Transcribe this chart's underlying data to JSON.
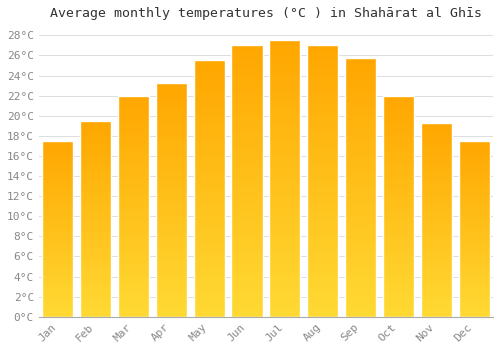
{
  "title": "Average monthly temperatures (°C ) in Shahārat al Ghīs",
  "months": [
    "Jan",
    "Feb",
    "Mar",
    "Apr",
    "May",
    "Jun",
    "Jul",
    "Aug",
    "Sep",
    "Oct",
    "Nov",
    "Dec"
  ],
  "values": [
    17.5,
    19.5,
    22.0,
    23.3,
    25.5,
    27.0,
    27.5,
    27.0,
    25.7,
    22.0,
    19.3,
    17.5
  ],
  "bar_color_top": "#FFC020",
  "bar_color_bottom": "#FFB000",
  "bar_edge_color": "#FFFFFF",
  "ylim": [
    0,
    29
  ],
  "ytick_max": 28,
  "ytick_step": 2,
  "background_color": "#FFFFFF",
  "grid_color": "#DDDDDD",
  "title_fontsize": 9.5,
  "tick_fontsize": 8,
  "bar_width": 0.82
}
